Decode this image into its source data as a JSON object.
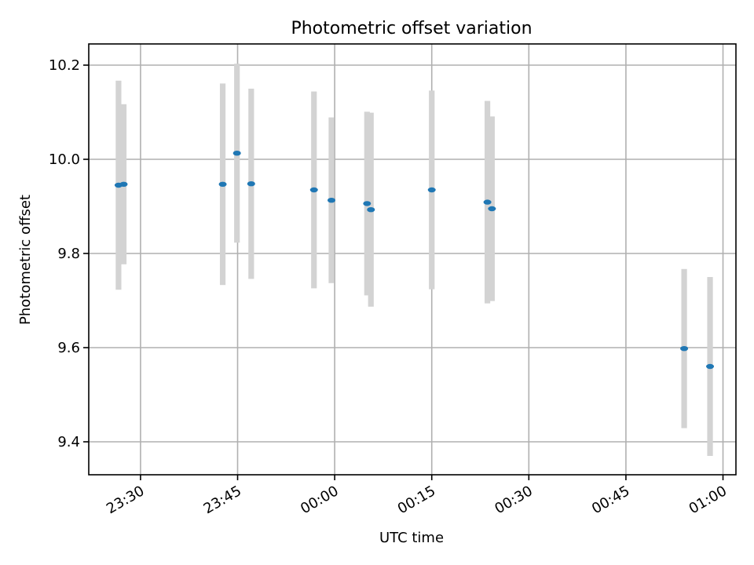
{
  "chart_data": {
    "type": "scatter",
    "title": "Photometric offset variation",
    "xlabel": "UTC time",
    "ylabel": "Photometric offset",
    "xlim": [
      "23:22",
      "01:02"
    ],
    "ylim": [
      9.33,
      10.245
    ],
    "x_ticks": [
      "23:30",
      "23:45",
      "00:00",
      "00:15",
      "00:30",
      "00:45",
      "01:00"
    ],
    "y_ticks": [
      9.4,
      9.6,
      9.8,
      10.0,
      10.2
    ],
    "y_tick_labels": [
      "9.4",
      "9.6",
      "9.8",
      "10.0",
      "10.2"
    ],
    "grid": true,
    "point_color": "#1f77b4",
    "errorbar_color": "#d3d3d3",
    "series": [
      {
        "points": [
          {
            "time": "23:26.6",
            "y": 9.945,
            "err": 0.222
          },
          {
            "time": "23:27.4",
            "y": 9.947,
            "err": 0.17
          },
          {
            "time": "23:42.7",
            "y": 9.947,
            "err": 0.214
          },
          {
            "time": "23:44.9",
            "y": 10.013,
            "err": 0.19
          },
          {
            "time": "23:47.1",
            "y": 9.948,
            "err": 0.202
          },
          {
            "time": "23:56.8",
            "y": 9.935,
            "err": 0.209
          },
          {
            "time": "23:59.5",
            "y": 9.913,
            "err": 0.176
          },
          {
            "time": "00:05.0",
            "y": 9.906,
            "err": 0.195
          },
          {
            "time": "00:05.6",
            "y": 9.893,
            "err": 0.206
          },
          {
            "time": "00:15.0",
            "y": 9.935,
            "err": 0.211
          },
          {
            "time": "00:23.6",
            "y": 9.909,
            "err": 0.215
          },
          {
            "time": "00:24.3",
            "y": 9.895,
            "err": 0.196
          },
          {
            "time": "00:54.0",
            "y": 9.598,
            "err": 0.169
          },
          {
            "time": "00:58.0",
            "y": 9.56,
            "err": 0.19
          }
        ]
      }
    ]
  }
}
